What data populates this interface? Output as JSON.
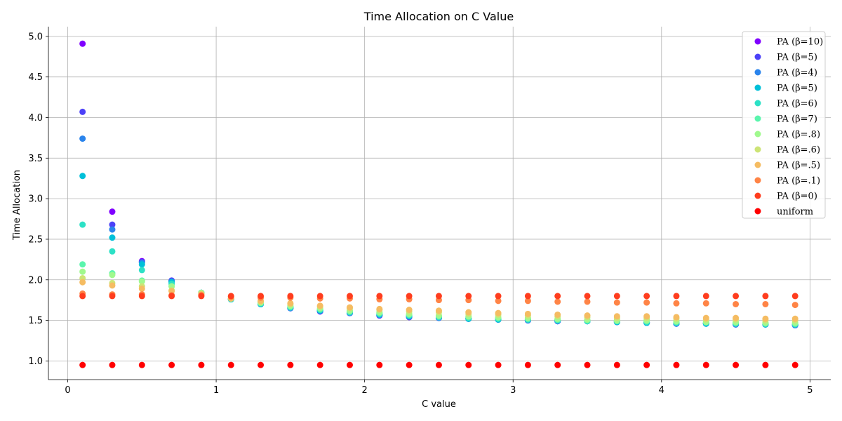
{
  "chart_data": {
    "type": "scatter",
    "title": "Time Allocation on C Value",
    "xlabel": "C value",
    "ylabel": "Time Allocation",
    "xlim": [
      -0.13,
      5.14
    ],
    "ylim": [
      0.77,
      5.12
    ],
    "xticks": [
      "0",
      "1",
      "2",
      "3",
      "4",
      "5"
    ],
    "yticks": [
      "1.0",
      "1.5",
      "2.0",
      "2.5",
      "3.0",
      "3.5",
      "4.0",
      "4.5",
      "5.0"
    ],
    "grid": true,
    "legend_position": "top-right",
    "x": [
      0.1,
      0.3,
      0.5,
      0.7,
      0.9,
      1.1,
      1.3,
      1.5,
      1.7,
      1.9,
      2.1,
      2.3,
      2.5,
      2.7,
      2.9,
      3.1,
      3.3,
      3.5,
      3.7,
      3.9,
      4.1,
      4.3,
      4.5,
      4.7,
      4.9
    ],
    "series": [
      {
        "name": "PA (β=10)",
        "color": "#8000ff",
        "values": [
          4.91,
          2.84,
          2.23,
          1.99,
          1.84,
          1.76,
          1.7,
          1.65,
          1.61,
          1.59,
          1.56,
          1.54,
          1.53,
          1.52,
          1.51,
          1.5,
          1.49,
          1.49,
          1.48,
          1.47,
          1.46,
          1.46,
          1.45,
          1.45,
          1.44
        ]
      },
      {
        "name": "PA (β=5)",
        "color": "#4c41f8",
        "values": [
          4.07,
          2.68,
          2.22,
          1.99,
          1.84,
          1.76,
          1.7,
          1.65,
          1.61,
          1.59,
          1.56,
          1.54,
          1.53,
          1.52,
          1.51,
          1.5,
          1.49,
          1.49,
          1.48,
          1.47,
          1.46,
          1.46,
          1.45,
          1.45,
          1.44
        ]
      },
      {
        "name": "PA (β=4)",
        "color": "#2a84ec",
        "values": [
          3.74,
          2.62,
          2.21,
          1.98,
          1.84,
          1.76,
          1.7,
          1.65,
          1.62,
          1.59,
          1.57,
          1.55,
          1.53,
          1.52,
          1.51,
          1.5,
          1.49,
          1.49,
          1.48,
          1.47,
          1.46,
          1.46,
          1.45,
          1.45,
          1.44
        ]
      },
      {
        "name": "PA (β=5)",
        "color": "#00c0d9",
        "values": [
          3.28,
          2.52,
          2.19,
          1.97,
          1.84,
          1.76,
          1.7,
          1.66,
          1.62,
          1.6,
          1.57,
          1.55,
          1.54,
          1.52,
          1.51,
          1.51,
          1.5,
          1.49,
          1.48,
          1.47,
          1.47,
          1.46,
          1.46,
          1.45,
          1.45
        ]
      },
      {
        "name": "PA (β=6)",
        "color": "#2ce1c6",
        "values": [
          2.68,
          2.35,
          2.12,
          1.95,
          1.84,
          1.76,
          1.71,
          1.66,
          1.63,
          1.6,
          1.58,
          1.56,
          1.54,
          1.53,
          1.52,
          1.51,
          1.5,
          1.49,
          1.49,
          1.48,
          1.47,
          1.47,
          1.46,
          1.46,
          1.45
        ]
      },
      {
        "name": "PA (β=7)",
        "color": "#5af5ad",
        "values": [
          2.19,
          2.08,
          1.99,
          1.92,
          1.84,
          1.77,
          1.71,
          1.67,
          1.64,
          1.61,
          1.59,
          1.57,
          1.55,
          1.54,
          1.53,
          1.52,
          1.51,
          1.5,
          1.49,
          1.49,
          1.48,
          1.48,
          1.47,
          1.46,
          1.46
        ]
      },
      {
        "name": "PA (β=.8)",
        "color": "#a0f98e",
        "values": [
          2.1,
          2.06,
          1.98,
          1.92,
          1.84,
          1.77,
          1.72,
          1.68,
          1.65,
          1.62,
          1.6,
          1.58,
          1.56,
          1.55,
          1.54,
          1.53,
          1.52,
          1.51,
          1.5,
          1.5,
          1.49,
          1.48,
          1.48,
          1.47,
          1.47
        ]
      },
      {
        "name": "PA (β=.6)",
        "color": "#cde476",
        "values": [
          2.02,
          1.96,
          1.92,
          1.87,
          1.83,
          1.77,
          1.73,
          1.7,
          1.67,
          1.65,
          1.63,
          1.61,
          1.6,
          1.58,
          1.57,
          1.56,
          1.55,
          1.54,
          1.53,
          1.53,
          1.52,
          1.51,
          1.51,
          1.5,
          1.5
        ]
      },
      {
        "name": "PA (β=.5)",
        "color": "#f5bc62",
        "values": [
          1.97,
          1.93,
          1.89,
          1.86,
          1.82,
          1.77,
          1.74,
          1.71,
          1.68,
          1.66,
          1.64,
          1.63,
          1.62,
          1.6,
          1.59,
          1.58,
          1.57,
          1.56,
          1.55,
          1.55,
          1.54,
          1.53,
          1.53,
          1.52,
          1.52
        ]
      },
      {
        "name": "PA (β=.1)",
        "color": "#ff8446",
        "values": [
          1.83,
          1.82,
          1.82,
          1.81,
          1.81,
          1.79,
          1.78,
          1.78,
          1.77,
          1.77,
          1.76,
          1.76,
          1.75,
          1.75,
          1.74,
          1.74,
          1.73,
          1.73,
          1.72,
          1.72,
          1.71,
          1.71,
          1.7,
          1.7,
          1.69
        ]
      },
      {
        "name": "PA (β=0)",
        "color": "#ff3d1e",
        "values": [
          1.8,
          1.8,
          1.8,
          1.8,
          1.8,
          1.8,
          1.8,
          1.8,
          1.8,
          1.8,
          1.8,
          1.8,
          1.8,
          1.8,
          1.8,
          1.8,
          1.8,
          1.8,
          1.8,
          1.8,
          1.8,
          1.8,
          1.8,
          1.8,
          1.8
        ]
      },
      {
        "name": "uniform",
        "color": "#ff0000",
        "values": [
          0.95,
          0.95,
          0.95,
          0.95,
          0.95,
          0.95,
          0.95,
          0.95,
          0.95,
          0.95,
          0.95,
          0.95,
          0.95,
          0.95,
          0.95,
          0.95,
          0.95,
          0.95,
          0.95,
          0.95,
          0.95,
          0.95,
          0.95,
          0.95,
          0.95
        ]
      }
    ]
  }
}
